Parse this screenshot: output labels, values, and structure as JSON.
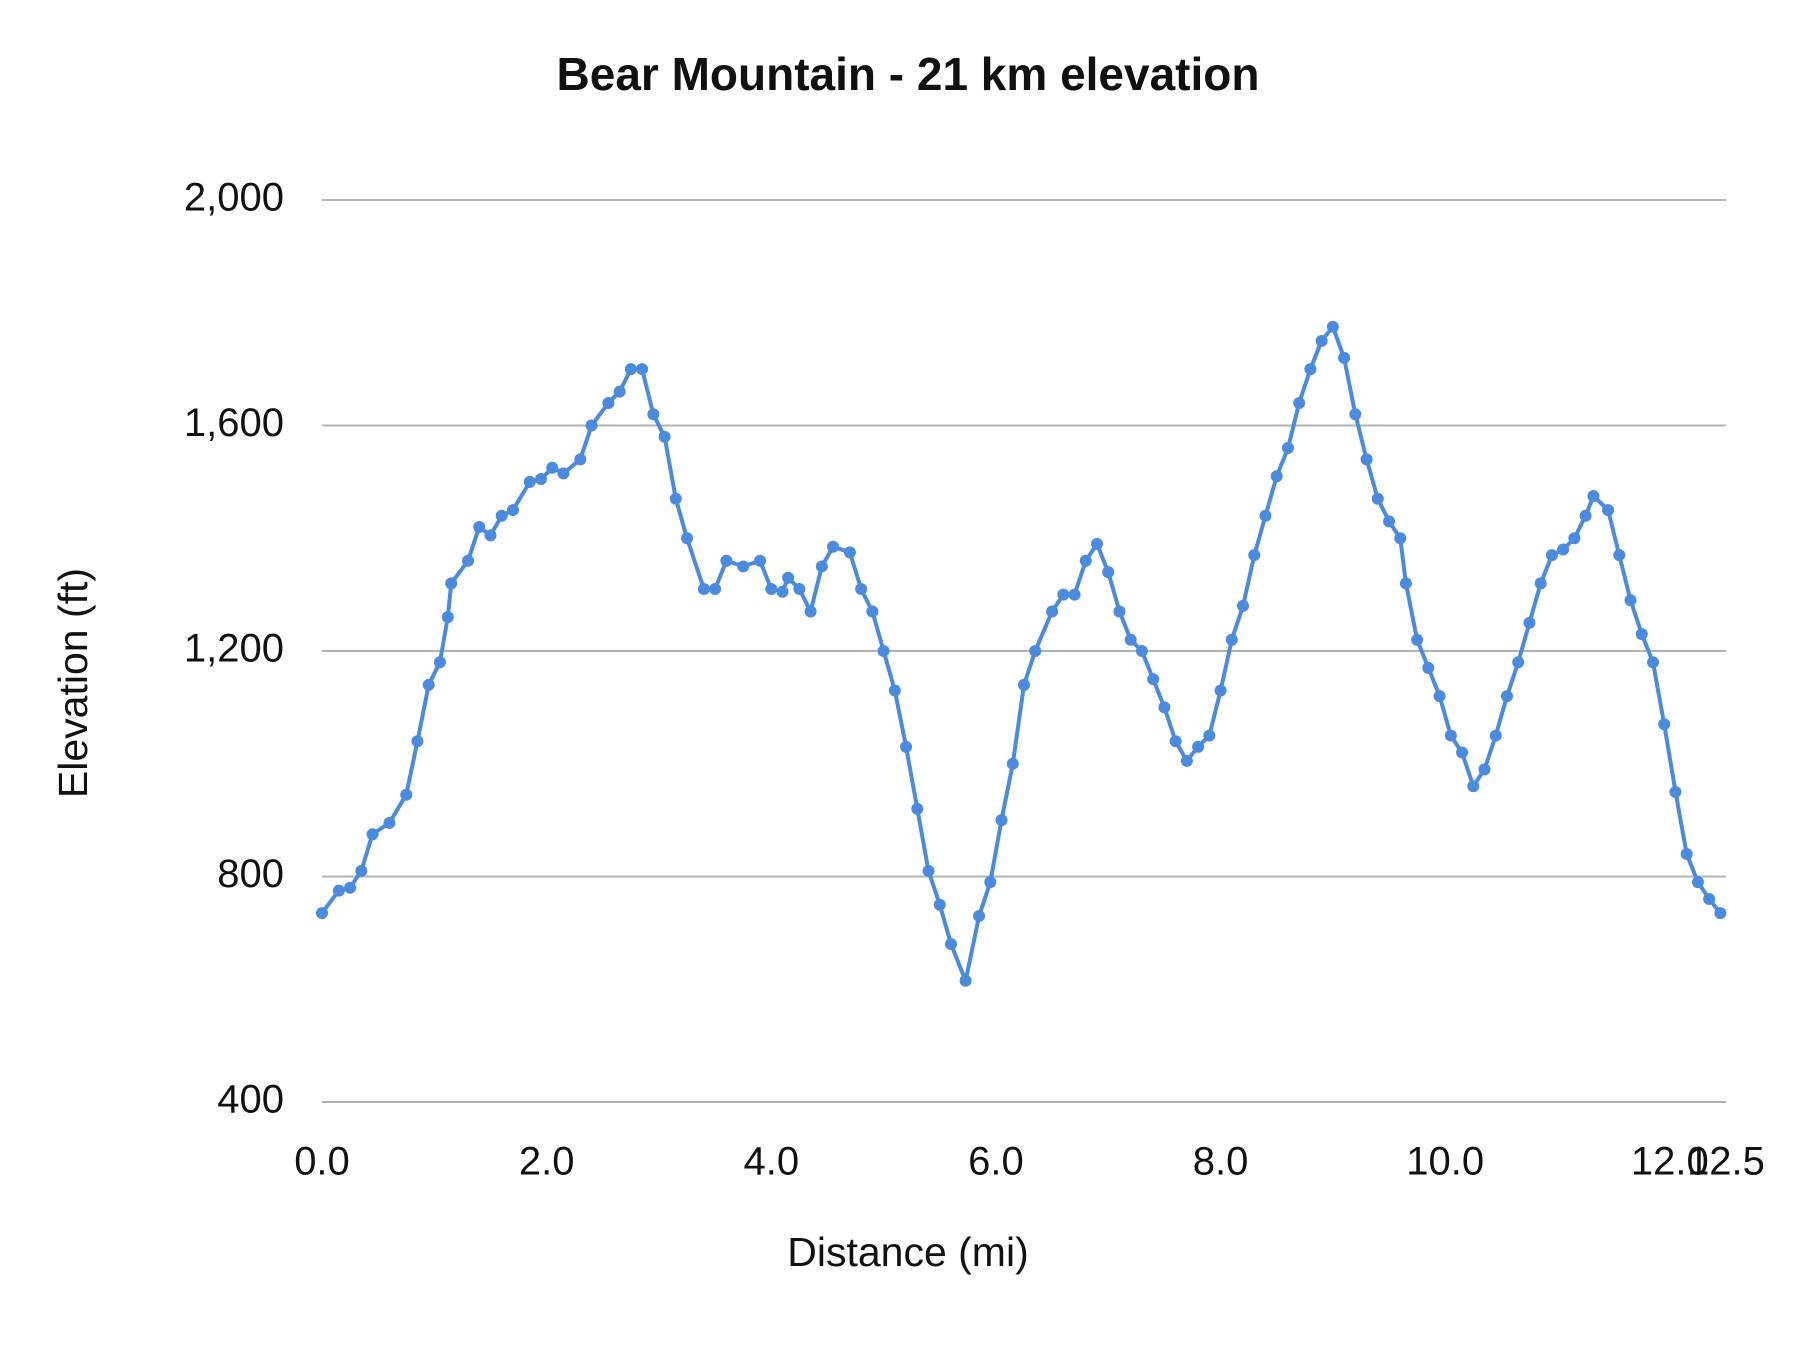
{
  "chart_data": {
    "type": "line",
    "title": "Bear Mountain  - 21 km elevation",
    "x_label": "Distance (mi)",
    "y_label": "Elevation (ft)",
    "color": "#4a8be0",
    "grid": true,
    "markers": true,
    "xlim": [
      0,
      12.5
    ],
    "xticks": [
      {
        "value": 0,
        "label": "0.0"
      },
      {
        "value": 2,
        "label": "2.0"
      },
      {
        "value": 4,
        "label": "4.0"
      },
      {
        "value": 6,
        "label": "6.0"
      },
      {
        "value": 8,
        "label": "8.0"
      },
      {
        "value": 10,
        "label": "10.0"
      },
      {
        "value": 12,
        "label": "12.0"
      },
      12.5
    ],
    "ylim": [
      400,
      2000
    ],
    "yticks": [
      400,
      800,
      {
        "value": 1200,
        "label": "1,200"
      },
      {
        "value": 1600,
        "label": "1,600"
      },
      {
        "value": 2000,
        "label": "2,000"
      }
    ],
    "x": [
      0,
      0.15,
      0.25,
      0.35,
      0.45,
      0.6,
      0.75,
      0.85,
      0.95,
      1.05,
      1.12,
      1.15,
      1.3,
      1.4,
      1.5,
      1.6,
      1.7,
      1.85,
      1.95,
      2.05,
      2.15,
      2.3,
      2.4,
      2.55,
      2.65,
      2.75,
      2.85,
      2.95,
      3.05,
      3.15,
      3.25,
      3.4,
      3.5,
      3.6,
      3.75,
      3.9,
      4.0,
      4.1,
      4.15,
      4.25,
      4.35,
      4.45,
      4.55,
      4.7,
      4.8,
      4.9,
      5.0,
      5.1,
      5.2,
      5.3,
      5.4,
      5.5,
      5.6,
      5.73,
      5.85,
      5.95,
      6.05,
      6.15,
      6.25,
      6.35,
      6.5,
      6.6,
      6.7,
      6.8,
      6.9,
      7.0,
      7.1,
      7.2,
      7.3,
      7.4,
      7.5,
      7.6,
      7.7,
      7.8,
      7.9,
      8.0,
      8.1,
      8.2,
      8.3,
      8.4,
      8.5,
      8.6,
      8.7,
      8.8,
      8.9,
      9.0,
      9.1,
      9.2,
      9.3,
      9.4,
      9.5,
      9.6,
      9.65,
      9.75,
      9.85,
      9.95,
      10.05,
      10.15,
      10.25,
      10.35,
      10.45,
      10.55,
      10.65,
      10.75,
      10.85,
      10.95,
      11.05,
      11.15,
      11.25,
      11.32,
      11.45,
      11.55,
      11.65,
      11.75,
      11.85,
      11.95,
      12.05,
      12.15,
      12.25,
      12.35,
      12.45
    ],
    "values": [
      735,
      775,
      780,
      810,
      875,
      895,
      945,
      1040,
      1140,
      1180,
      1260,
      1320,
      1360,
      1420,
      1405,
      1440,
      1450,
      1500,
      1505,
      1525,
      1515,
      1540,
      1600,
      1640,
      1660,
      1700,
      1700,
      1620,
      1580,
      1470,
      1400,
      1310,
      1310,
      1360,
      1350,
      1360,
      1310,
      1305,
      1330,
      1310,
      1270,
      1350,
      1385,
      1375,
      1310,
      1270,
      1200,
      1130,
      1030,
      920,
      810,
      750,
      680,
      615,
      730,
      790,
      900,
      1000,
      1140,
      1200,
      1270,
      1300,
      1300,
      1360,
      1390,
      1340,
      1270,
      1220,
      1200,
      1150,
      1100,
      1040,
      1005,
      1030,
      1050,
      1130,
      1220,
      1280,
      1370,
      1440,
      1510,
      1560,
      1640,
      1700,
      1750,
      1775,
      1720,
      1620,
      1540,
      1470,
      1430,
      1400,
      1320,
      1220,
      1170,
      1120,
      1050,
      1020,
      960,
      990,
      1050,
      1120,
      1180,
      1250,
      1320,
      1370,
      1380,
      1400,
      1440,
      1475,
      1450,
      1370,
      1290,
      1230,
      1180,
      1070,
      950,
      840,
      790,
      760,
      735
    ]
  }
}
